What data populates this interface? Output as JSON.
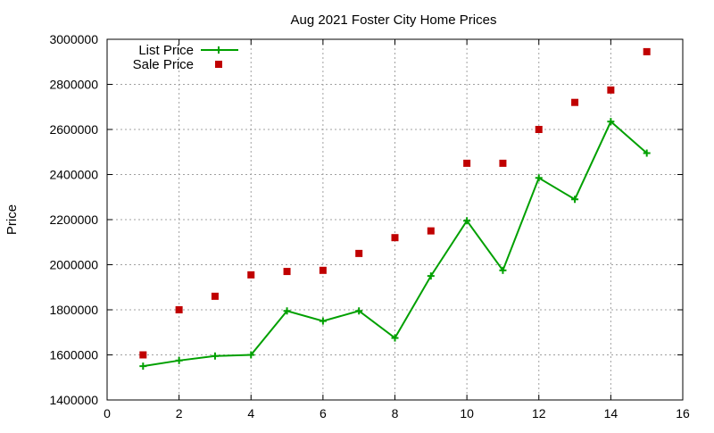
{
  "chart_data": {
    "type": "line",
    "title": "Aug 2021 Foster City Home Prices",
    "xlabel": "",
    "ylabel": "Price",
    "xlim": [
      0,
      16
    ],
    "ylim": [
      1400000,
      3000000
    ],
    "xticks": [
      0,
      2,
      4,
      6,
      8,
      10,
      12,
      14,
      16
    ],
    "yticks": [
      1400000,
      1600000,
      1800000,
      2000000,
      2200000,
      2400000,
      2600000,
      2800000,
      3000000
    ],
    "grid": true,
    "legend_position": "top-left",
    "colors": {
      "list_price": "#00a000",
      "sale_price": "#c00000"
    },
    "series": [
      {
        "name": "List Price",
        "style": "line-with-plus-markers",
        "x": [
          1,
          2,
          3,
          4,
          5,
          6,
          7,
          8,
          9,
          10,
          11,
          12,
          13,
          14,
          15
        ],
        "values": [
          1550000,
          1575000,
          1595000,
          1600000,
          1795000,
          1750000,
          1795000,
          1675000,
          1950000,
          2195000,
          1975000,
          2385000,
          2290000,
          2635000,
          2495000
        ]
      },
      {
        "name": "Sale Price",
        "style": "square-markers",
        "x": [
          1,
          2,
          3,
          4,
          5,
          6,
          7,
          8,
          9,
          10,
          11,
          12,
          13,
          14,
          15
        ],
        "values": [
          1600000,
          1800000,
          1860000,
          1955000,
          1970000,
          1975000,
          2050000,
          2120000,
          2150000,
          2450000,
          2450000,
          2600000,
          2720000,
          2775000,
          2945000
        ]
      }
    ]
  }
}
